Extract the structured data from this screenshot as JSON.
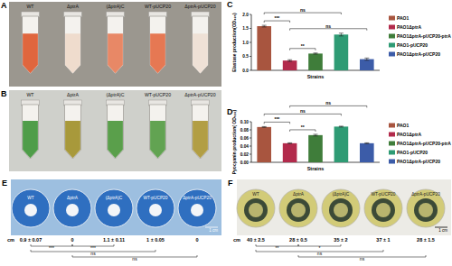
{
  "photo_panels": [
    {
      "title": "A",
      "strains": [
        "WT",
        "ΔptrA",
        "(ΔptrA)C",
        "WT-pUCP20",
        "ΔptrA-pUCP20"
      ]
    },
    {
      "title": "B",
      "strains": [
        "WT",
        "ΔptrA",
        "(ΔptrA)C",
        "WT-pUCP20",
        "ΔptrA-pUCP20"
      ]
    },
    {
      "title": "E",
      "strains": [
        "WT",
        "ΔptrA",
        "(ΔptrA)C",
        "WT-pUCP20",
        "ΔptrA-pUCP20"
      ],
      "unit": "cm",
      "measurements": [
        "0.9 ± 0.07",
        "0",
        "1.1 ± 0.11",
        "1 ± 0.05",
        "0"
      ],
      "scale": "1 cm",
      "comparisons": [
        {
          "between": [
            "WT",
            "ΔptrA"
          ],
          "text": "***"
        },
        {
          "between": [
            "ΔptrA",
            "(ΔptrA)C"
          ],
          "text": "***"
        },
        {
          "between": [
            "WT",
            "WT-pUCP20"
          ],
          "text": "ns"
        },
        {
          "between": [
            "ΔptrA",
            "ΔptrA-pUCP20"
          ],
          "text": "ns"
        }
      ]
    },
    {
      "title": "F",
      "strains": [
        "WT",
        "ΔptrA",
        "(ΔptrA)C",
        "WT-pUCP20",
        "ΔptrA-pUCP20"
      ],
      "unit": "cm",
      "measurements": [
        "40 ± 2.5",
        "28 ± 0.5",
        "35 ± 2",
        "37 ± 1",
        "28 ± 1.5"
      ],
      "scale": "1 cm",
      "comparisons": [
        {
          "between": [
            "WT",
            "ΔptrA"
          ],
          "text": "**"
        },
        {
          "between": [
            "ΔptrA",
            "(ΔptrA)C"
          ],
          "text": "*"
        },
        {
          "between": [
            "WT",
            "WT-pUCP20"
          ],
          "text": "ns"
        },
        {
          "between": [
            "ΔptrA",
            "ΔptrA-pUCP20"
          ],
          "text": "ns"
        }
      ]
    }
  ],
  "chart_data": [
    {
      "type": "bar",
      "title": "C",
      "x_label": "Strains",
      "y_label": "Elastase production(OD₄₉₅)",
      "categories": [
        "PAO1",
        "PAO1ΔptrA",
        "PAO1ΔptrA-pUCP20-ptrA",
        "PAO1-pUCP20",
        "PAO1ΔptrA-pUCP20"
      ],
      "values": [
        1.58,
        0.35,
        0.6,
        1.28,
        0.4
      ],
      "errors": [
        0.03,
        0.03,
        0.02,
        0.05,
        0.04
      ],
      "colors": [
        "#a8553f",
        "#b22a4b",
        "#3f7d3a",
        "#2e9b74",
        "#3c5ca8"
      ],
      "ylim": [
        0,
        2
      ],
      "yticks": [
        {
          "value": 0,
          "label": "0.0"
        },
        0.5,
        {
          "value": 1,
          "label": "1.0"
        },
        1.5,
        {
          "value": 2,
          "label": "2.0"
        }
      ],
      "grid": false,
      "legend": "right",
      "tick_labels": "y",
      "annotations": [
        {
          "between": [
            "PAO1",
            "PAO1ΔptrA"
          ],
          "text": "***"
        },
        {
          "between": [
            "PAO1ΔptrA",
            "PAO1ΔptrA-pUCP20-ptrA"
          ],
          "text": "**"
        },
        {
          "between": [
            "PAO1",
            "PAO1-pUCP20"
          ],
          "text": "ns"
        },
        {
          "between": [
            "PAO1ΔptrA",
            "PAO1ΔptrA-pUCP20"
          ],
          "text": "ns"
        }
      ]
    },
    {
      "type": "bar",
      "title": "D",
      "x_label": "Strains",
      "y_label": "Pyocyanin production( OD₅₂₀)",
      "categories": [
        "PAO1",
        "PAO1ΔptrA",
        "PAO1ΔptrA-pUCP20-ptrA",
        "PAO1-pUCP20",
        "PAO1ΔptrA-pUCP20"
      ],
      "values": [
        0.087,
        0.047,
        0.067,
        0.088,
        0.047
      ],
      "errors": [
        0.001,
        0.001,
        0.002,
        0.001,
        0.001
      ],
      "colors": [
        "#a8553f",
        "#b22a4b",
        "#3f7d3a",
        "#2e9b74",
        "#3c5ca8"
      ],
      "ylim": [
        0,
        0.1
      ],
      "yticks": [
        {
          "value": 0,
          "label": "0.00"
        },
        {
          "value": 0.02,
          "label": "0.02"
        },
        {
          "value": 0.04,
          "label": "0.04"
        },
        {
          "value": 0.06,
          "label": "0.06"
        },
        {
          "value": 0.08,
          "label": "0.08"
        },
        {
          "value": 0.1,
          "label": "0.10"
        }
      ],
      "grid": false,
      "legend": "right",
      "tick_labels": "y",
      "annotations": [
        {
          "between": [
            "PAO1",
            "PAO1ΔptrA"
          ],
          "text": "***"
        },
        {
          "between": [
            "PAO1ΔptrA",
            "PAO1ΔptrA-pUCP20-ptrA"
          ],
          "text": "**"
        },
        {
          "between": [
            "PAO1",
            "PAO1-pUCP20"
          ],
          "text": "ns"
        },
        {
          "between": [
            "PAO1ΔptrA",
            "PAO1ΔptrA-pUCP20"
          ],
          "text": "ns"
        }
      ]
    }
  ]
}
